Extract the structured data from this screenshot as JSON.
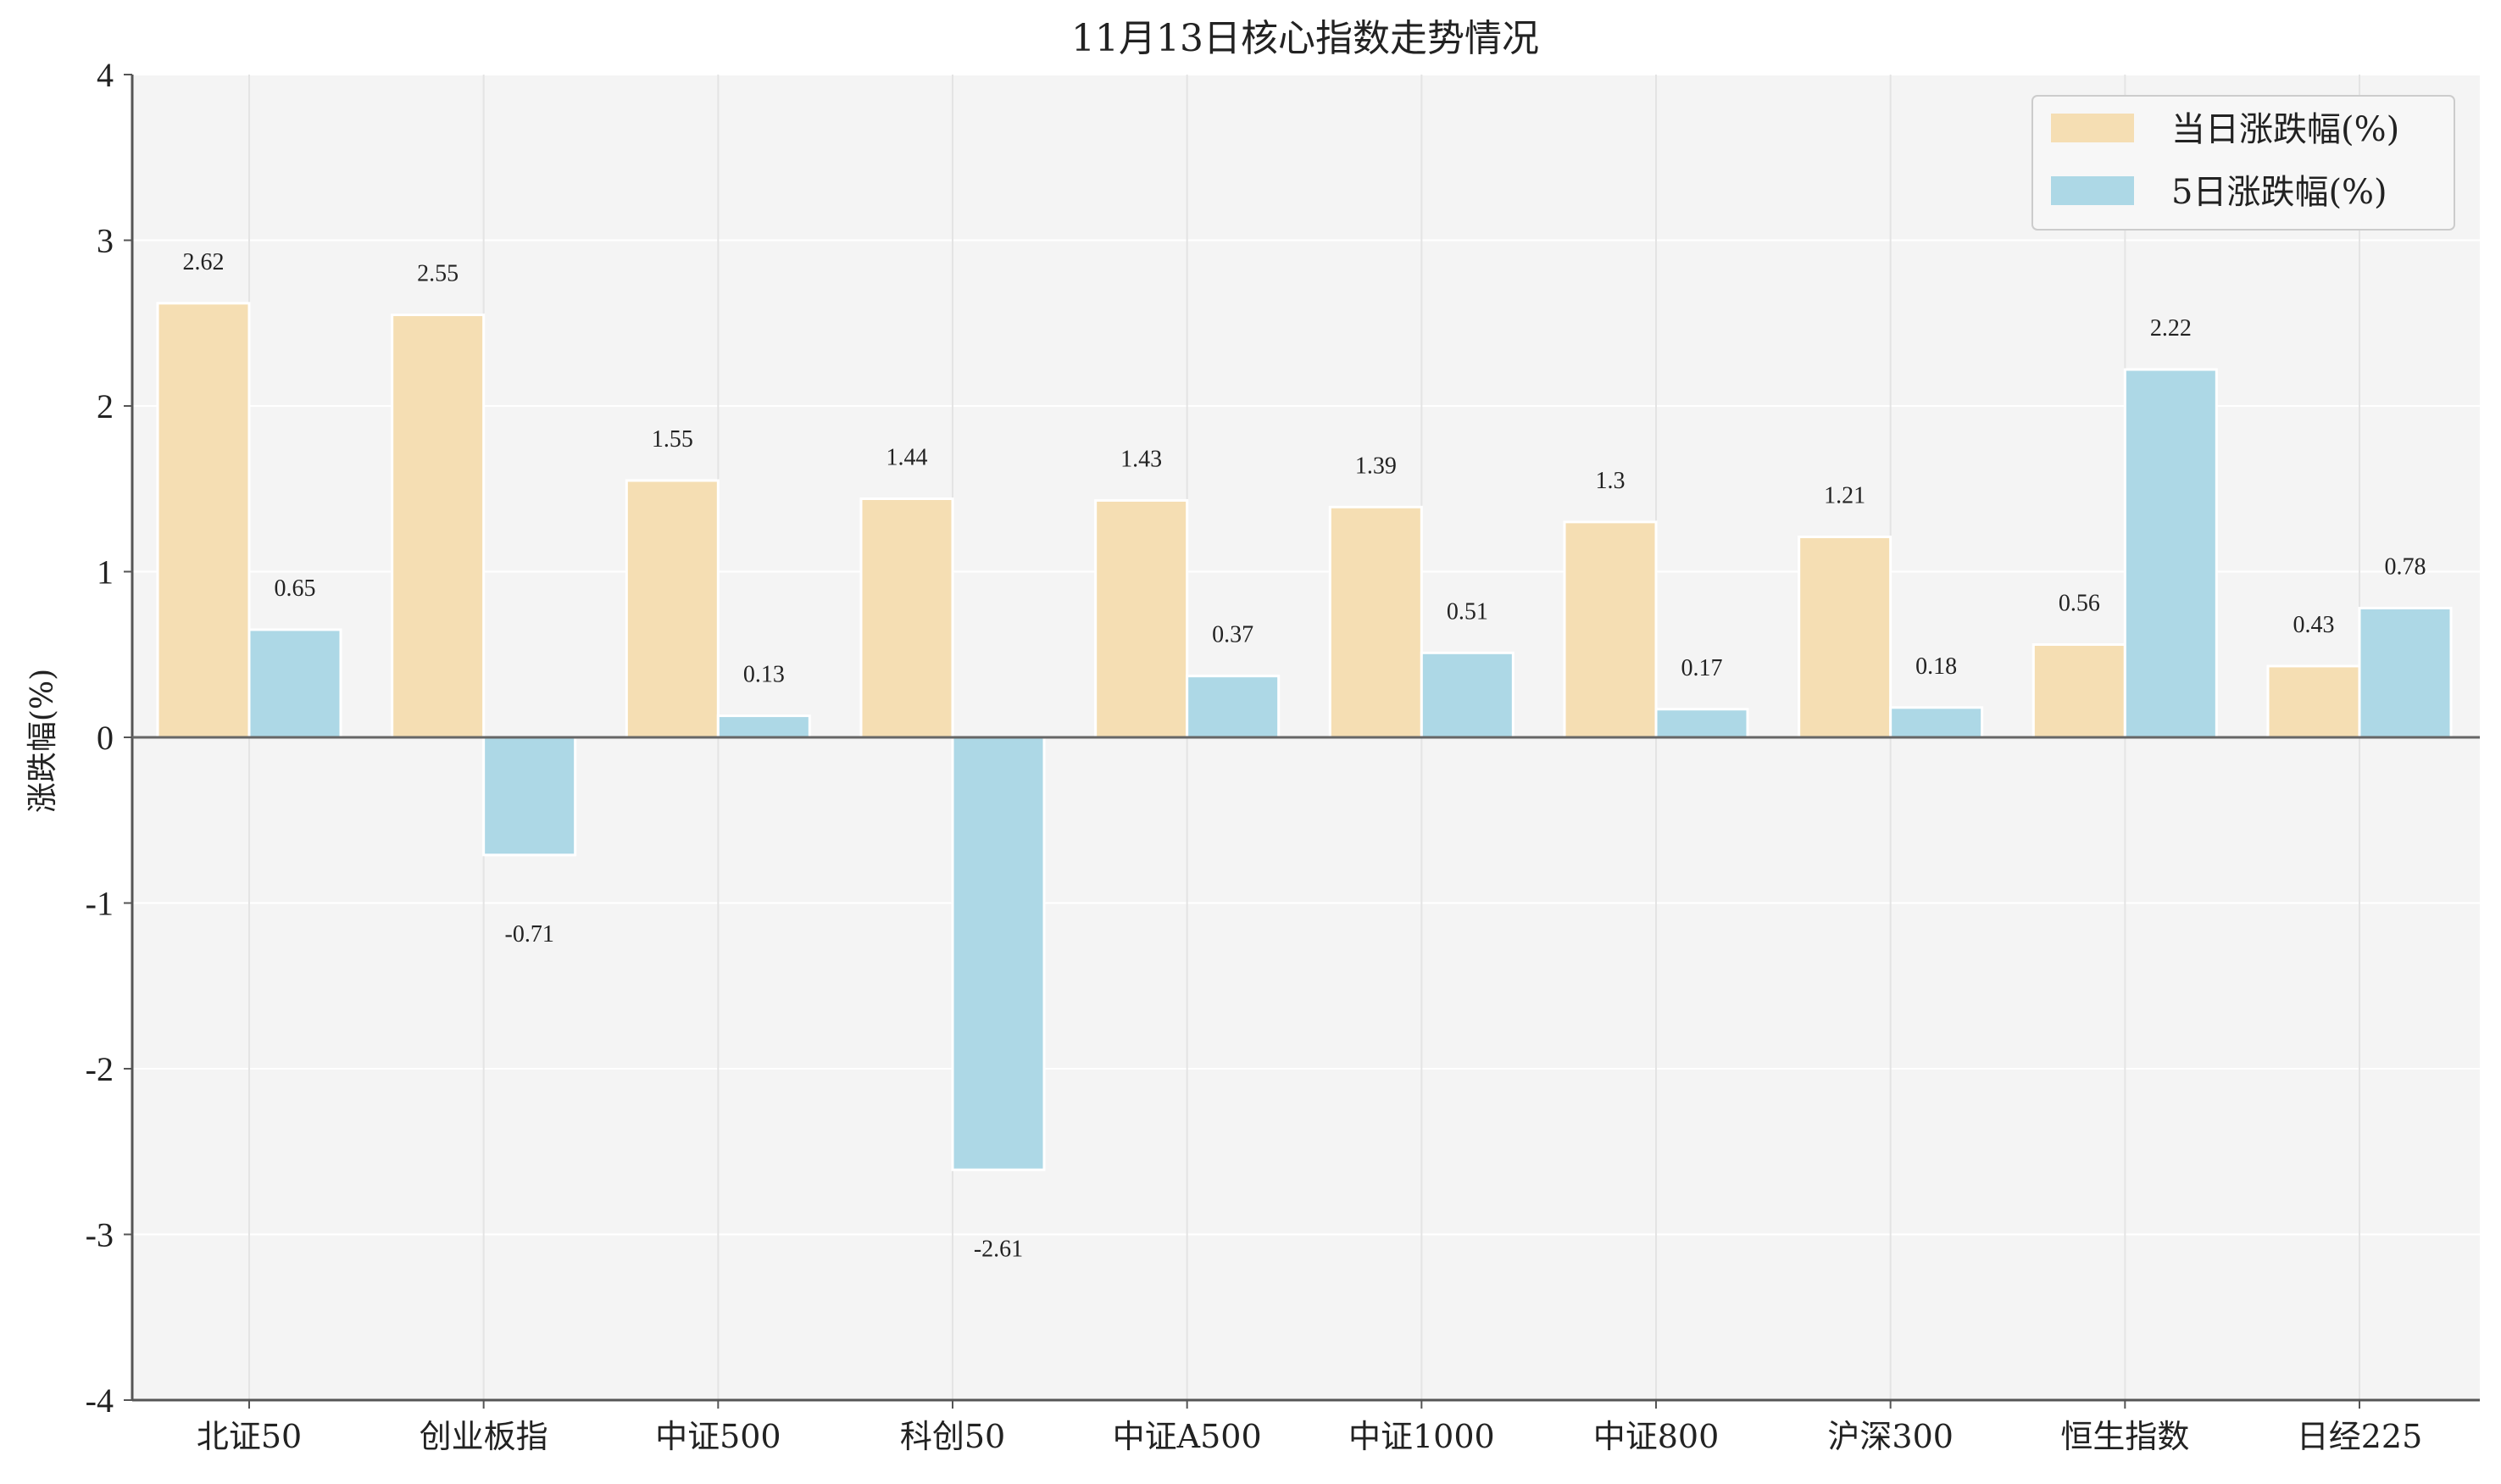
{
  "chart_data": {
    "type": "bar",
    "title": "11月13日核心指数走势情况",
    "xlabel": "",
    "ylabel": "涨跌幅(%)",
    "ylim": [
      -4,
      4
    ],
    "yticks": [
      4,
      3,
      2,
      1,
      0,
      -1,
      -2,
      -3,
      -4
    ],
    "ytick_labels": [
      "4",
      "3",
      "2",
      "1",
      "0",
      "-1",
      "-2",
      "-3",
      "-4"
    ],
    "categories": [
      "北证50",
      "创业板指",
      "中证500",
      "科创50",
      "中证A500",
      "中证1000",
      "中证800",
      "沪深300",
      "恒生指数",
      "日经225"
    ],
    "series": [
      {
        "name": "当日涨跌幅(%)",
        "color": "#f5deb3",
        "values": [
          2.62,
          2.55,
          1.55,
          1.44,
          1.43,
          1.39,
          1.3,
          1.21,
          0.56,
          0.43
        ],
        "labels": [
          "2.62",
          "2.55",
          "1.55",
          "1.44",
          "1.43",
          "1.39",
          "1.3",
          "1.21",
          "0.56",
          "0.43"
        ]
      },
      {
        "name": "5日涨跌幅(%)",
        "color": "#add8e6",
        "values": [
          0.65,
          -0.71,
          0.13,
          -2.61,
          0.37,
          0.51,
          0.17,
          0.18,
          2.22,
          0.78
        ],
        "labels": [
          "0.65",
          "-0.71",
          "0.13",
          "-2.61",
          "0.37",
          "0.51",
          "0.17",
          "0.18",
          "2.22",
          "0.78"
        ]
      }
    ],
    "grid": true,
    "legend_position": "top-right",
    "background_color": "#f4f4f4"
  }
}
